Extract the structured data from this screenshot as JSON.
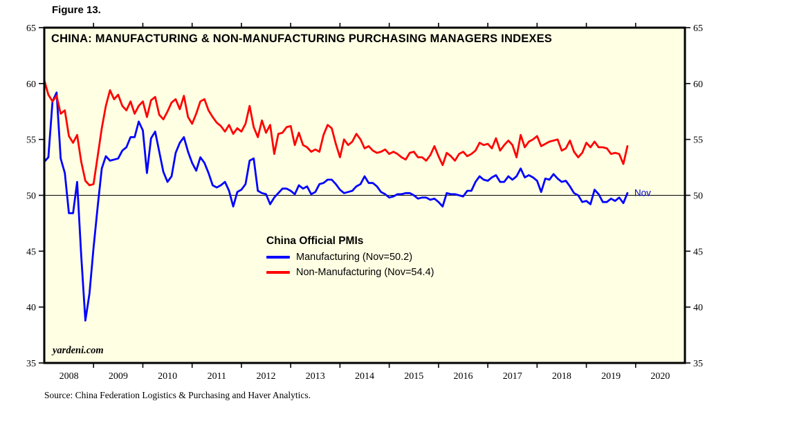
{
  "figure_label": "Figure 13.",
  "chart": {
    "title": "CHINA: MANUFACTURING & NON-MANUFACTURING PURCHASING MANAGERS INDEXES",
    "watermark": "yardeni.com",
    "annotation": "Nov",
    "annotation_color": "#0000CC",
    "background_color": "#FFFFE4",
    "frame_color": "#000000"
  },
  "legend": {
    "heading": "China Official PMIs",
    "entries": [
      {
        "label": "Manufacturing (Nov=50.2)",
        "color": "#0000FF"
      },
      {
        "label": "Non-Manufacturing (Nov=54.4)",
        "color": "#FF0000"
      }
    ]
  },
  "source_note": "Source: China Federation Logistics & Purchasing and Haver Analytics.",
  "chart_data": {
    "type": "line",
    "title": "CHINA: MANUFACTURING & NON-MANUFACTURING PURCHASING MANAGERS INDEXES",
    "x_unit": "month",
    "x_start": "2008-01",
    "x_end_of_data": "2019-11",
    "x_axis_years": [
      2008,
      2009,
      2010,
      2011,
      2012,
      2013,
      2014,
      2015,
      2016,
      2017,
      2018,
      2019,
      2020
    ],
    "ylim": [
      35,
      65
    ],
    "y_ticks": [
      35,
      40,
      45,
      50,
      55,
      60,
      65
    ],
    "reference_line": 50,
    "grid": false,
    "legend_position": "center",
    "series": [
      {
        "name": "Manufacturing",
        "color": "#0000FF",
        "last_point_label": "Nov=50.2",
        "values": [
          53.0,
          53.4,
          58.4,
          59.2,
          53.3,
          52.0,
          48.4,
          48.4,
          51.2,
          44.6,
          38.8,
          41.2,
          45.3,
          49.0,
          52.4,
          53.5,
          53.1,
          53.2,
          53.3,
          54.0,
          54.3,
          55.2,
          55.2,
          56.6,
          55.8,
          52.0,
          55.1,
          55.7,
          53.9,
          52.1,
          51.2,
          51.7,
          53.8,
          54.7,
          55.2,
          53.9,
          52.9,
          52.2,
          53.4,
          52.9,
          52.0,
          50.9,
          50.7,
          50.9,
          51.2,
          50.4,
          49.0,
          50.3,
          50.5,
          51.0,
          53.1,
          53.3,
          50.4,
          50.2,
          50.1,
          49.2,
          49.8,
          50.2,
          50.6,
          50.6,
          50.4,
          50.1,
          50.9,
          50.6,
          50.8,
          50.1,
          50.3,
          51.0,
          51.1,
          51.4,
          51.4,
          51.0,
          50.5,
          50.2,
          50.3,
          50.4,
          50.8,
          51.0,
          51.7,
          51.1,
          51.1,
          50.8,
          50.3,
          50.1,
          49.8,
          49.9,
          50.1,
          50.1,
          50.2,
          50.2,
          50.0,
          49.7,
          49.8,
          49.8,
          49.6,
          49.7,
          49.4,
          49.0,
          50.2,
          50.1,
          50.1,
          50.0,
          49.9,
          50.4,
          50.4,
          51.2,
          51.7,
          51.4,
          51.3,
          51.6,
          51.8,
          51.2,
          51.2,
          51.7,
          51.4,
          51.7,
          52.4,
          51.6,
          51.8,
          51.6,
          51.3,
          50.3,
          51.5,
          51.4,
          51.9,
          51.5,
          51.2,
          51.3,
          50.8,
          50.2,
          50.0,
          49.4,
          49.5,
          49.2,
          50.5,
          50.1,
          49.4,
          49.4,
          49.7,
          49.5,
          49.8,
          49.3,
          50.2
        ]
      },
      {
        "name": "Non-Manufacturing",
        "color": "#FF0000",
        "last_point_label": "Nov=54.4",
        "values": [
          60.3,
          59.0,
          58.4,
          58.9,
          57.3,
          57.6,
          55.3,
          54.7,
          55.4,
          53.0,
          51.3,
          50.9,
          51.0,
          53.5,
          56.0,
          58.0,
          59.4,
          58.6,
          59.0,
          58.0,
          57.6,
          58.4,
          57.3,
          58.0,
          58.4,
          57.0,
          58.5,
          58.8,
          57.2,
          56.8,
          57.5,
          58.3,
          58.6,
          57.7,
          58.9,
          57.0,
          56.4,
          57.3,
          58.4,
          58.6,
          57.6,
          57.0,
          56.5,
          56.2,
          55.7,
          56.3,
          55.5,
          56.0,
          55.7,
          56.4,
          58.0,
          56.1,
          55.2,
          56.7,
          55.6,
          56.3,
          53.7,
          55.5,
          55.6,
          56.1,
          56.2,
          54.5,
          55.6,
          54.5,
          54.3,
          53.9,
          54.1,
          53.9,
          55.4,
          56.3,
          56.0,
          54.6,
          53.4,
          55.0,
          54.5,
          54.8,
          55.5,
          55.0,
          54.2,
          54.4,
          54.0,
          53.8,
          53.9,
          54.1,
          53.7,
          53.9,
          53.7,
          53.4,
          53.2,
          53.8,
          53.9,
          53.4,
          53.4,
          53.1,
          53.6,
          54.4,
          53.5,
          52.7,
          53.8,
          53.5,
          53.1,
          53.7,
          53.9,
          53.5,
          53.7,
          54.0,
          54.7,
          54.5,
          54.6,
          54.2,
          55.1,
          54.0,
          54.5,
          54.9,
          54.5,
          53.4,
          55.4,
          54.3,
          54.8,
          55.0,
          55.3,
          54.4,
          54.6,
          54.8,
          54.9,
          55.0,
          54.0,
          54.2,
          54.9,
          53.9,
          53.4,
          53.8,
          54.7,
          54.3,
          54.8,
          54.3,
          54.3,
          54.2,
          53.7,
          53.8,
          53.7,
          52.8,
          54.4
        ]
      }
    ]
  }
}
